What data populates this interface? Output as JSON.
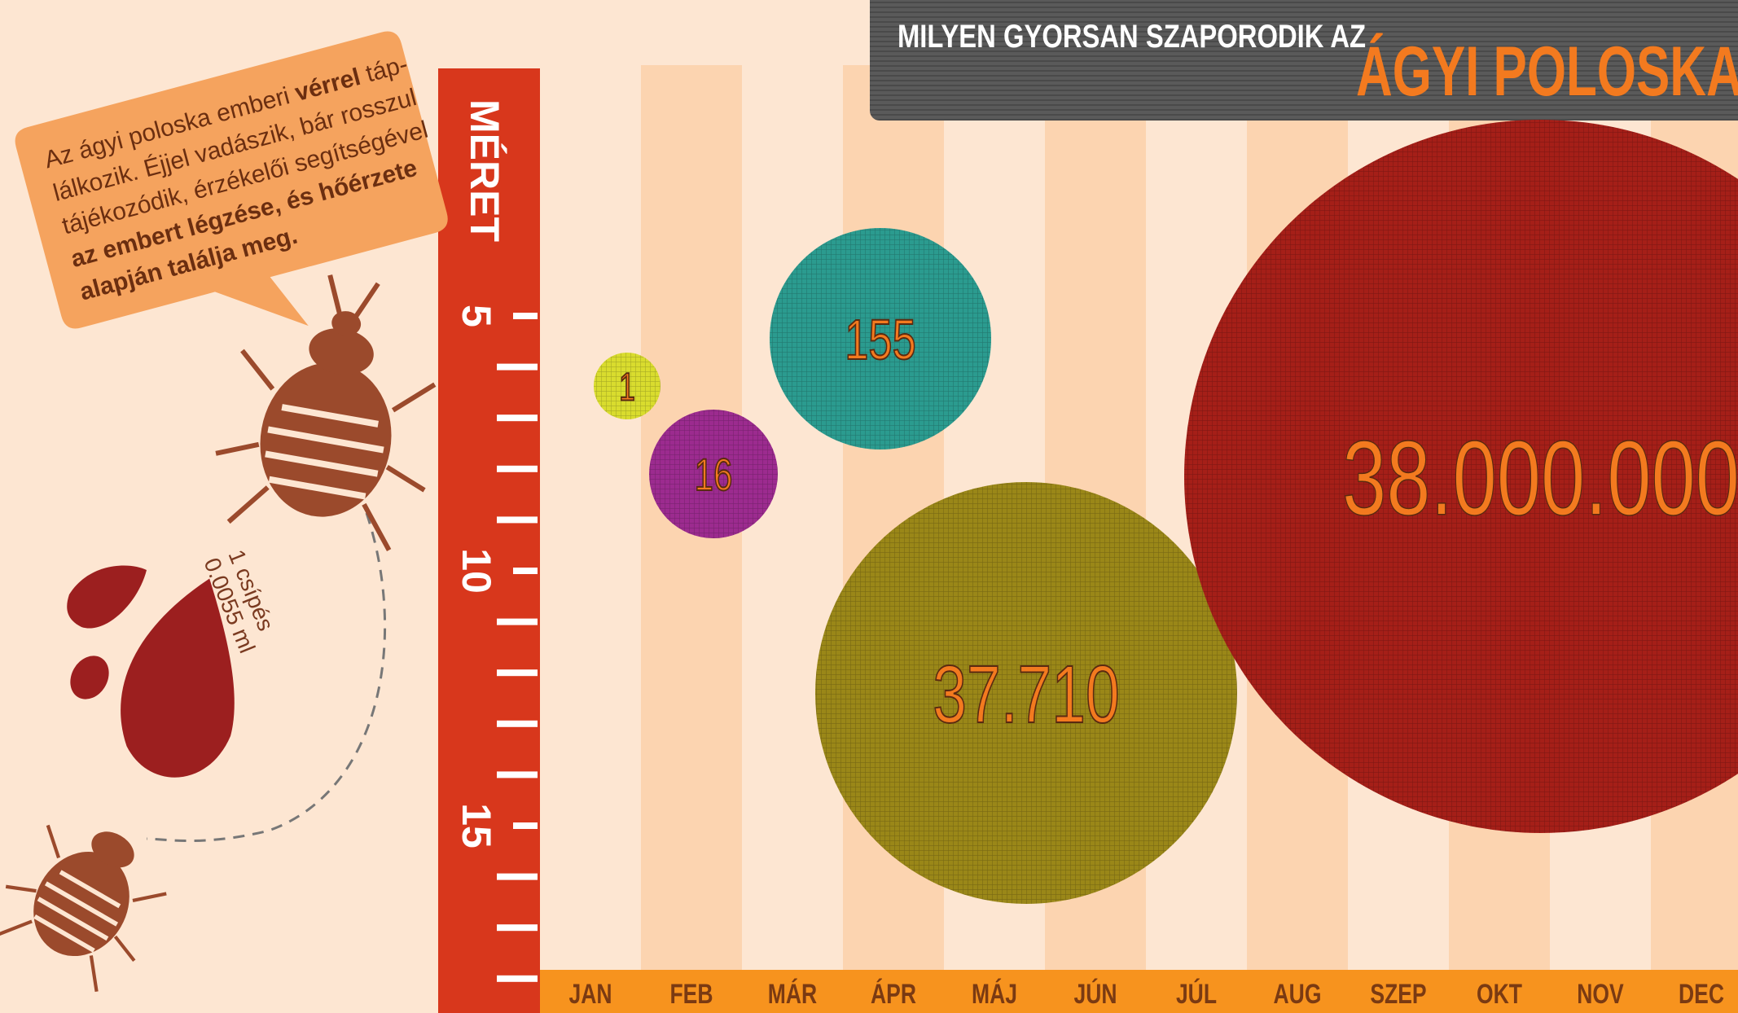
{
  "title": {
    "line1": "MILYEN GYORSAN SZAPORODIK AZ",
    "line2": "ÁGYI POLOSKA?"
  },
  "callout": {
    "lines": [
      [
        {
          "text": "Az ágyi poloska emberi ",
          "bold": false
        },
        {
          "text": "vérrel",
          "bold": true
        },
        {
          "text": " táp-",
          "bold": false
        }
      ],
      [
        {
          "text": "lálkozik. Éjjel vadászik, bár rosszul",
          "bold": false
        }
      ],
      [
        {
          "text": "tájékozódik, érzékelői segítségével",
          "bold": false
        }
      ],
      [
        {
          "text": "az embert légzése, és hőérzete",
          "bold": true
        }
      ],
      [
        {
          "text": "alapján találja meg.",
          "bold": true
        }
      ]
    ]
  },
  "bite": {
    "line1": "1 csípés",
    "line2": "0.0055 ml"
  },
  "ruler": {
    "label": "MÉRET",
    "ticks": [
      "5",
      "10",
      "15"
    ]
  },
  "months": [
    "JAN",
    "FEB",
    "MÁR",
    "ÁPR",
    "MÁJ",
    "JÚN",
    "JÚL",
    "AUG",
    "SZEP",
    "OKT",
    "NOV",
    "DEC"
  ],
  "bubbles": [
    {
      "label": "1",
      "color": "#d9dc2e"
    },
    {
      "label": "16",
      "color": "#9c2b8f"
    },
    {
      "label": "155",
      "color": "#2b9b8f"
    },
    {
      "label": "37.710",
      "color": "#9a8718"
    },
    {
      "label": "38.000.000",
      "color": "#a51f18"
    }
  ]
}
